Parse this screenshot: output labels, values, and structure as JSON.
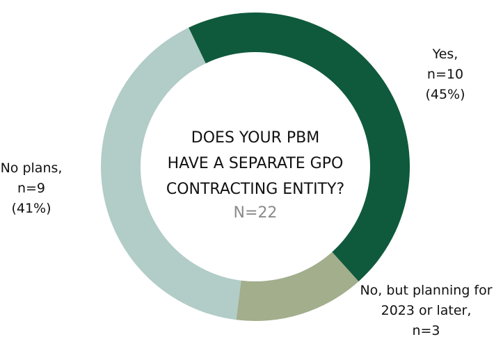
{
  "chart_data": {
    "type": "donut",
    "title": [
      "DOES YOUR PBM",
      "HAVE A SEPARATE GPO",
      "CONTRACTING ENTITY?"
    ],
    "total": 22,
    "total_label": "N=22",
    "categories": [
      "Yes,",
      "No, but planning for 2023 or later,",
      "No plans,"
    ],
    "values": [
      10,
      3,
      9
    ],
    "value_labels": [
      "n=10",
      "n=3",
      "n=9"
    ],
    "percents": [
      45,
      null,
      41
    ],
    "percent_labels": [
      "(45%)",
      null,
      "(41%)"
    ],
    "colors": [
      "#0f5a3c",
      "#a2ae8c",
      "#b2ccc8"
    ]
  }
}
